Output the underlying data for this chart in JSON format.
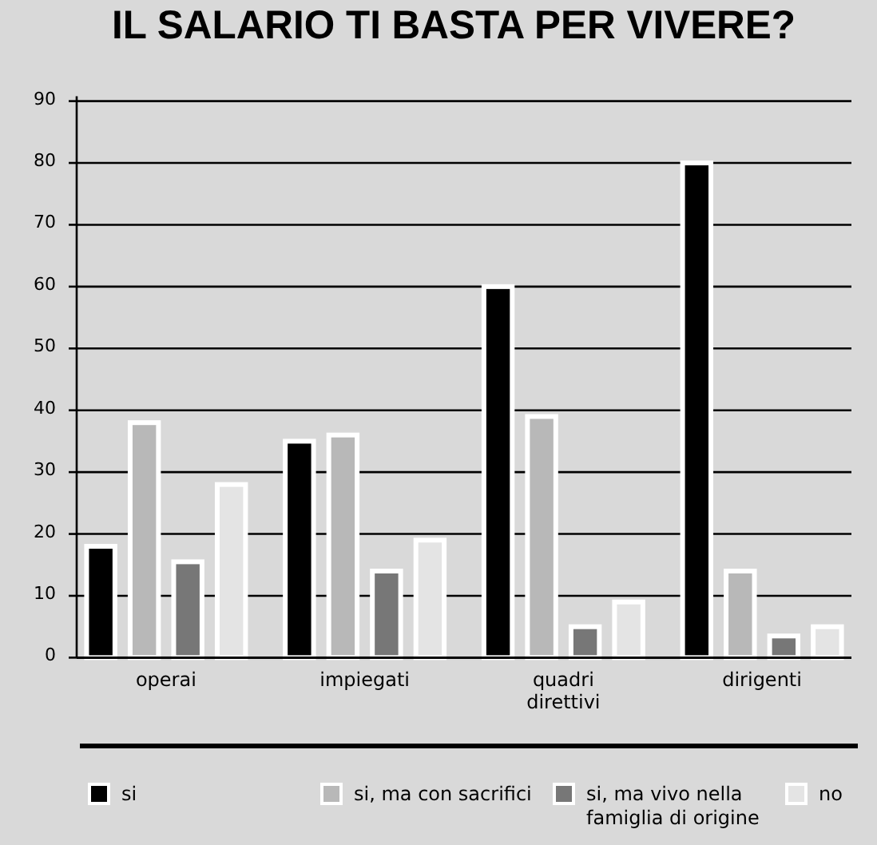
{
  "chart_data": {
    "type": "bar",
    "title": "IL SALARIO TI BASTA PER VIVERE?",
    "categories": [
      "operai",
      "impiegati",
      "quadri direttivi",
      "dirigenti"
    ],
    "series": [
      {
        "name": "si",
        "color": "#000000",
        "values": [
          18,
          35,
          60,
          80
        ]
      },
      {
        "name": "si, ma con sacrifici",
        "color": "#b8b8b8",
        "values": [
          38,
          36,
          39,
          14
        ]
      },
      {
        "name": "si, ma vivo nella famiglia di origine",
        "color": "#777777",
        "values": [
          15.5,
          14,
          5,
          3.5
        ]
      },
      {
        "name": "no",
        "color": "#e4e4e4",
        "values": [
          28,
          19,
          9,
          5
        ]
      }
    ],
    "ylim": [
      0,
      90
    ],
    "yticks": [
      0,
      10,
      20,
      30,
      40,
      50,
      60,
      70,
      80,
      90
    ],
    "grid": "y",
    "legend": "bottom"
  }
}
